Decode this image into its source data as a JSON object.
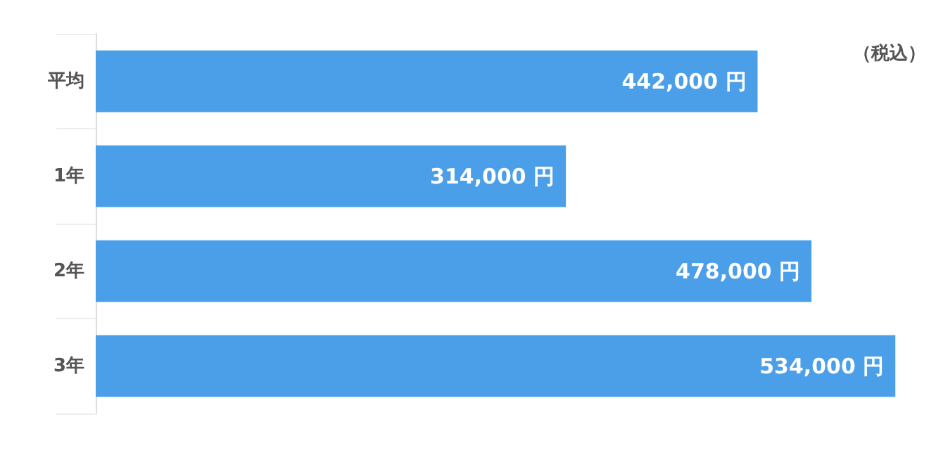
{
  "chart_data": {
    "type": "bar",
    "orientation": "horizontal",
    "categories": [
      "平均",
      "1年",
      "2年",
      "3年"
    ],
    "values": [
      442000,
      314000,
      478000,
      534000
    ],
    "value_labels": [
      "442,000 円",
      "314,000 円",
      "478,000 円",
      "534,000 円"
    ],
    "color": "#4a9fe8",
    "annotations": [
      "（税込）"
    ]
  }
}
